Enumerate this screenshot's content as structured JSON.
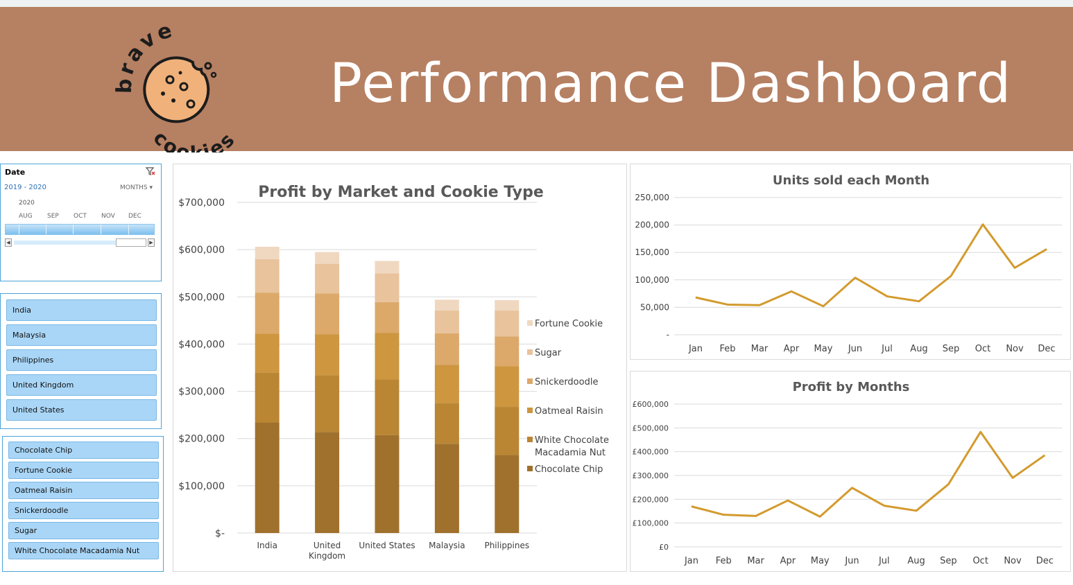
{
  "header": {
    "title": "Performance Dashboard",
    "logo_top": "brave",
    "logo_bottom": "cookies",
    "background": "#b68062"
  },
  "timeline": {
    "title": "Date",
    "range": "2019 - 2020",
    "unit": "MONTHS",
    "year": "2020",
    "months": [
      "AUG",
      "SEP",
      "OCT",
      "NOV",
      "DEC"
    ]
  },
  "market_slicer": {
    "items": [
      "India",
      "Malaysia",
      "Philippines",
      "United Kingdom",
      "United States"
    ]
  },
  "cookie_slicer": {
    "items": [
      "Chocolate Chip",
      "Fortune Cookie",
      "Oatmeal Raisin",
      "Snickerdoodle",
      "Sugar",
      "White Chocolate Macadamia Nut"
    ]
  },
  "chart_data": [
    {
      "type": "bar",
      "stacked": true,
      "title": "Profit by Market and Cookie Type",
      "categories": [
        "India",
        "United Kingdom",
        "United States",
        "Malaysia",
        "Philippines"
      ],
      "category_labels": [
        [
          "India"
        ],
        [
          "United",
          "Kingdom"
        ],
        [
          "United States"
        ],
        [
          "Malaysia"
        ],
        [
          "Philippines"
        ]
      ],
      "ylim": [
        0,
        700000
      ],
      "yticks": [
        "$-",
        "$100,000",
        "$200,000",
        "$300,000",
        "$400,000",
        "$500,000",
        "$600,000",
        "$700,000"
      ],
      "legend_position": "right",
      "series": [
        {
          "name": "Chocolate Chip",
          "color": "#a0712c",
          "values": [
            234000,
            214000,
            207000,
            189000,
            165000
          ]
        },
        {
          "name": "White Chocolate Macadamia Nut",
          "color": "#ba8634",
          "values": [
            106000,
            120000,
            118000,
            86000,
            102000
          ]
        },
        {
          "name": "Oatmeal Raisin",
          "color": "#cd963f",
          "values": [
            82000,
            87000,
            99000,
            81000,
            86000
          ]
        },
        {
          "name": "Snickerdoodle",
          "color": "#dca96a",
          "values": [
            87000,
            86000,
            65000,
            67000,
            63000
          ]
        },
        {
          "name": "Sugar",
          "color": "#e8c39c",
          "values": [
            71000,
            63000,
            61000,
            48000,
            55000
          ]
        },
        {
          "name": "Fortune Cookie",
          "color": "#f0d8c0",
          "values": [
            26000,
            25000,
            26000,
            23000,
            22000
          ]
        }
      ],
      "legend_labels": [
        [
          "Fortune Cookie"
        ],
        [
          "Sugar"
        ],
        [
          "Snickerdoodle"
        ],
        [
          "Oatmeal Raisin"
        ],
        [
          "White Chocolate",
          "Macadamia Nut"
        ],
        [
          "Chocolate Chip"
        ]
      ],
      "legend_colors": [
        "#f0d8c0",
        "#e8c39c",
        "#dca96a",
        "#cd963f",
        "#ba8634",
        "#a0712c"
      ]
    },
    {
      "type": "line",
      "title": "Units sold each Month",
      "categories": [
        "Jan",
        "Feb",
        "Mar",
        "Apr",
        "May",
        "Jun",
        "Jul",
        "Aug",
        "Sep",
        "Oct",
        "Nov",
        "Dec"
      ],
      "values": [
        68000,
        55000,
        54000,
        79000,
        52000,
        104000,
        70000,
        61000,
        107000,
        201000,
        122000,
        156000
      ],
      "ylim": [
        0,
        250000
      ],
      "yticks": [
        "-",
        "50,000",
        "100,000",
        "150,000",
        "200,000",
        "250,000"
      ],
      "color": "#d39a2d"
    },
    {
      "type": "line",
      "title": "Profit by Months",
      "categories": [
        "Jan",
        "Feb",
        "Mar",
        "Apr",
        "May",
        "Jun",
        "Jul",
        "Aug",
        "Sep",
        "Oct",
        "Nov",
        "Dec"
      ],
      "values": [
        170000,
        135000,
        130000,
        195000,
        127000,
        248000,
        173000,
        152000,
        263000,
        483000,
        290000,
        385000
      ],
      "ylim": [
        0,
        600000
      ],
      "yticks": [
        "£0",
        "£100,000",
        "£200,000",
        "£300,000",
        "£400,000",
        "£500,000",
        "£600,000"
      ],
      "color": "#d39a2d"
    }
  ]
}
